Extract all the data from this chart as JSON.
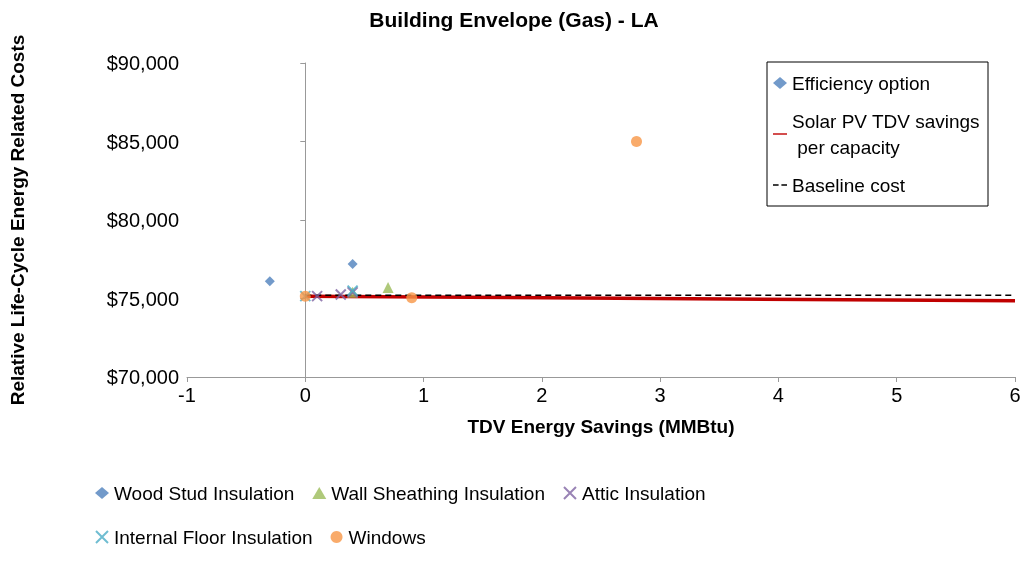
{
  "chart_data": {
    "type": "scatter",
    "title": "Building Envelope (Gas) - LA",
    "xlabel": "TDV Energy Savings (MMBtu)",
    "ylabel": "Relative Life-Cycle Energy Related Costs",
    "xlim": [
      -1,
      6
    ],
    "xticks": [
      -1,
      0,
      1,
      2,
      3,
      4,
      5,
      6
    ],
    "ylim": [
      70000,
      90000
    ],
    "yticks": [
      {
        "value": 70000,
        "label": "$70,000"
      },
      {
        "value": 75000,
        "label": "$75,000"
      },
      {
        "value": 80000,
        "label": "$80,000"
      },
      {
        "value": 85000,
        "label": "$85,000"
      },
      {
        "value": 90000,
        "label": "$90,000"
      }
    ],
    "legend": "bottom",
    "series": [
      {
        "name": "Efficiency option",
        "marker": "diamond",
        "color": "#4f81bd"
      },
      {
        "name": "Solar PV TDV savings per capacity",
        "type": "line",
        "marker": "none",
        "line_style": "solid",
        "color": "#c00000",
        "x": [
          0,
          6
        ],
        "values": [
          75150,
          74850
        ]
      },
      {
        "name": "Baseline cost",
        "type": "line",
        "marker": "none",
        "line_style": "dashed",
        "color": "#000000",
        "x": [
          0,
          6
        ],
        "values": [
          75200,
          75200
        ]
      },
      {
        "name": "Wood Stud Insulation",
        "marker": "diamond",
        "color": "#4f81bd",
        "x": [
          -0.3,
          0.4
        ],
        "values": [
          76100,
          77200
        ]
      },
      {
        "name": "Wall Sheathing Insulation",
        "marker": "triangle",
        "color": "#9bbb59",
        "x": [
          0.4,
          0.7
        ],
        "values": [
          75400,
          75700
        ]
      },
      {
        "name": "Attic Insulation",
        "marker": "cross",
        "color": "#8064a2",
        "x": [
          0.1,
          0.3,
          0.4
        ],
        "values": [
          75150,
          75250,
          75400
        ]
      },
      {
        "name": "Internal Floor Insulation",
        "marker": "cross",
        "color": "#4bacc6",
        "x": [
          0,
          0.4
        ],
        "values": [
          75150,
          75500
        ]
      },
      {
        "name": "Windows",
        "marker": "circle",
        "color": "#f79646",
        "x": [
          0,
          0.9,
          2.8
        ],
        "values": [
          75150,
          75050,
          85000
        ]
      }
    ]
  }
}
